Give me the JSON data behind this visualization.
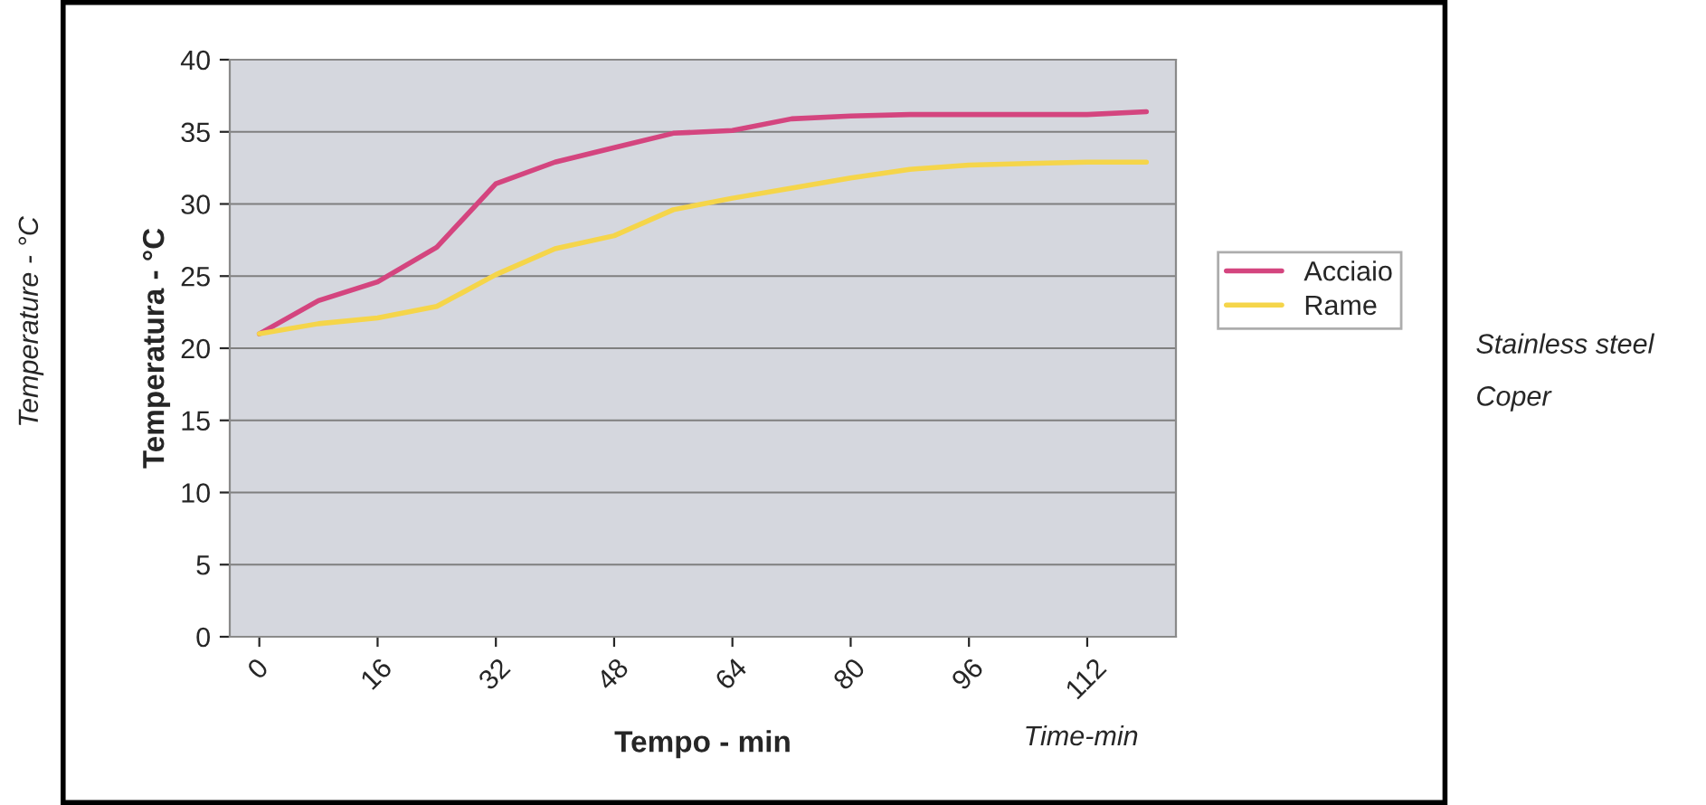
{
  "chart_data": {
    "type": "line",
    "xlabel": "Tempo - min",
    "ylabel": "Temperatura - °C",
    "x": [
      0,
      8,
      16,
      24,
      32,
      40,
      48,
      56,
      64,
      72,
      80,
      88,
      96,
      104,
      112,
      120
    ],
    "series": [
      {
        "name": "Acciaio",
        "color": "#d4457f",
        "values": [
          21.0,
          23.3,
          24.6,
          27.0,
          31.4,
          32.9,
          33.9,
          34.9,
          35.1,
          35.9,
          36.1,
          36.2,
          36.2,
          36.2,
          36.2,
          36.4
        ]
      },
      {
        "name": "Rame",
        "color": "#f5d54a",
        "values": [
          21.0,
          21.7,
          22.1,
          22.9,
          25.1,
          26.9,
          27.8,
          29.6,
          30.4,
          31.1,
          31.8,
          32.4,
          32.7,
          32.8,
          32.9,
          32.9
        ]
      }
    ],
    "xlim": [
      -4,
      124
    ],
    "xticks": [
      0,
      16,
      32,
      48,
      64,
      80,
      96,
      112
    ],
    "ylim": [
      0,
      40
    ],
    "yticks": [
      0,
      5,
      10,
      15,
      20,
      25,
      30,
      35,
      40
    ],
    "grid": "y",
    "legend": "right",
    "marker": "none",
    "line_style": "solid",
    "annotations": [
      "Stainless steel",
      "Coper",
      "Temperature - °C",
      "Time-min"
    ]
  }
}
